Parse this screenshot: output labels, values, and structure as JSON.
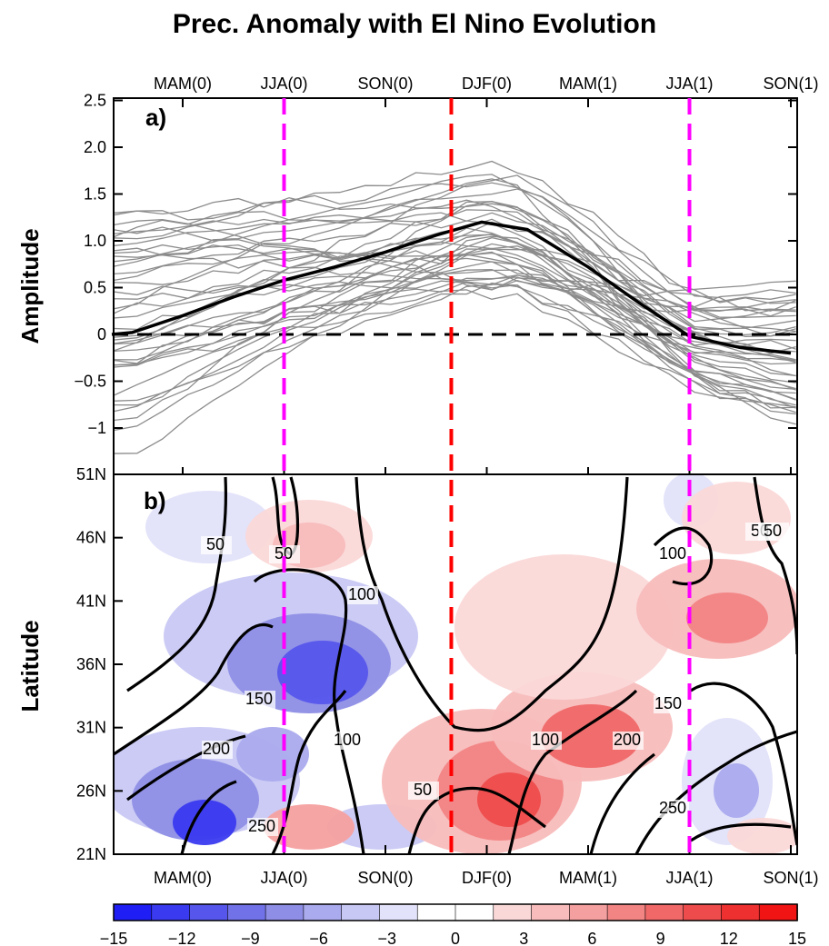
{
  "title": "Prec. Anomaly with El Nino Evolution",
  "chart_data": [
    {
      "panel": "a)",
      "type": "line",
      "ylabel": "Amplitude",
      "ylim": [
        -1.45,
        2.5
      ],
      "yticks": [
        "2.5",
        "2.0",
        "1.5",
        "1.0",
        "0.5",
        "0",
        "−0.5",
        "−1"
      ],
      "ytick_values": [
        2.5,
        2.0,
        1.5,
        1.0,
        0.5,
        0,
        -0.5,
        -1
      ],
      "top_xticks": [
        "MAM(0)",
        "JJA(0)",
        "SON(0)",
        "DJF(0)",
        "MAM(1)",
        "JJA(1)",
        "SON(1)"
      ],
      "x_positions": [
        0,
        1,
        2,
        3,
        4,
        5,
        6
      ],
      "xlim": [
        -0.7,
        6.05
      ],
      "zero_line": {
        "value": 0,
        "style": "dashed",
        "color": "#000000"
      },
      "mean_series": {
        "x": [
          -0.7,
          -0.5,
          0,
          0.5,
          1,
          1.5,
          2,
          2.5,
          2.95,
          3.4,
          4,
          4.5,
          5,
          5.5,
          6
        ],
        "values": [
          0.0,
          0.02,
          0.2,
          0.4,
          0.58,
          0.72,
          0.88,
          1.06,
          1.2,
          1.12,
          0.72,
          0.34,
          -0.02,
          -0.14,
          -0.2
        ],
        "color": "#000000"
      },
      "member_series_count": 40,
      "member_color": "#8c8c8c"
    },
    {
      "panel": "b)",
      "type": "heatmap",
      "ylabel": "Latitude",
      "yticks": [
        "51N",
        "46N",
        "41N",
        "36N",
        "31N",
        "26N",
        "21N"
      ],
      "ytick_values": [
        51,
        46,
        41,
        36,
        31,
        26,
        21
      ],
      "ylim": [
        21,
        51
      ],
      "bottom_xticks": [
        "MAM(0)",
        "JJA(0)",
        "SON(0)",
        "DJF(0)",
        "MAM(1)",
        "JJA(1)",
        "SON(1)"
      ],
      "contour_labels": [
        "50",
        "50",
        "100",
        "50",
        "150",
        "200",
        "100",
        "250",
        "50",
        "100",
        "200",
        "150",
        "250",
        "100",
        "50"
      ],
      "colorbar": {
        "ticks": [
          "−15",
          "−12",
          "−9",
          "−6",
          "−3",
          "0",
          "3",
          "6",
          "9",
          "12",
          "15"
        ],
        "colors": [
          "#1e1ef5",
          "#3a3af0",
          "#5656ec",
          "#7272e8",
          "#8e8ee6",
          "#aaaaee",
          "#c8c8f4",
          "#e2e2fa",
          "#ffffff",
          "#ffffff",
          "#fbd8d8",
          "#f8bcbc",
          "#f5a0a0",
          "#f28484",
          "#f06868",
          "#ee4c4c",
          "#ee3030",
          "#f01414"
        ]
      }
    }
  ],
  "markers": {
    "jja_lines_color": "#ff00ff",
    "djf_line_color": "#ff0000"
  }
}
